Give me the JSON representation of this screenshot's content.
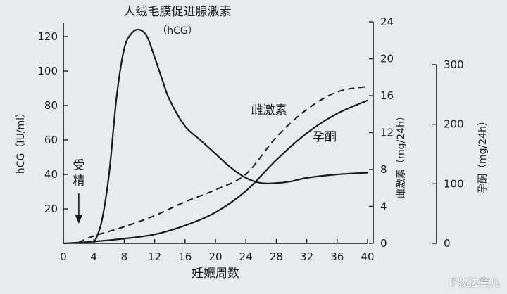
{
  "watermark": "IF牧边育儿",
  "chart_data": {
    "type": "line",
    "xlabel": "妊娠周数",
    "x_ticks": [
      0,
      4,
      8,
      12,
      16,
      20,
      24,
      28,
      32,
      36,
      40
    ],
    "xlim": [
      0,
      40
    ],
    "axes": {
      "hcg": {
        "label": "hCG（IU/ml）",
        "ticks": [
          0,
          20,
          40,
          60,
          80,
          100,
          120
        ],
        "lim": [
          0,
          130
        ]
      },
      "estriol": {
        "label": "雌激素（mg/24h）",
        "ticks": [
          0,
          4,
          8,
          12,
          16,
          20,
          24
        ],
        "lim": [
          0,
          25
        ]
      },
      "progesterone": {
        "label": "孕酮（mg/24h）",
        "ticks": [
          0,
          100,
          200,
          300
        ],
        "lim": [
          0,
          300
        ]
      }
    },
    "series": [
      {
        "name": "人绒毛膜促进腺激素",
        "sub_label": "（hCG）",
        "axis": "hcg",
        "style": "solid",
        "x": [
          4,
          5,
          6,
          7,
          8,
          9,
          10,
          11,
          12,
          13,
          14,
          16,
          18,
          20,
          22,
          24,
          26,
          28,
          30,
          32,
          36,
          40
        ],
        "y": [
          0,
          12,
          40,
          85,
          113,
          122,
          124,
          120,
          108,
          95,
          83,
          68,
          60,
          52,
          44,
          38,
          35,
          35,
          36,
          38,
          40,
          41
        ]
      },
      {
        "name": "雌激素",
        "axis": "estriol",
        "style": "dashed",
        "x": [
          2,
          4,
          8,
          12,
          16,
          20,
          24,
          28,
          32,
          36,
          40
        ],
        "y": [
          0.1,
          0.8,
          1.8,
          3.0,
          4.5,
          5.8,
          7.5,
          11.5,
          14.5,
          16.4,
          17.0
        ]
      },
      {
        "name": "孕酮",
        "axis": "progesterone",
        "style": "solid",
        "x": [
          0,
          4,
          8,
          12,
          16,
          20,
          24,
          28,
          32,
          36,
          40
        ],
        "y": [
          0,
          3,
          8,
          15,
          30,
          52,
          88,
          140,
          185,
          218,
          240
        ]
      }
    ],
    "annotations": [
      {
        "text": "受",
        "x": 3.6,
        "y_hcg": 43
      },
      {
        "text": "精",
        "x": 3.6,
        "y_hcg": 34
      }
    ]
  }
}
